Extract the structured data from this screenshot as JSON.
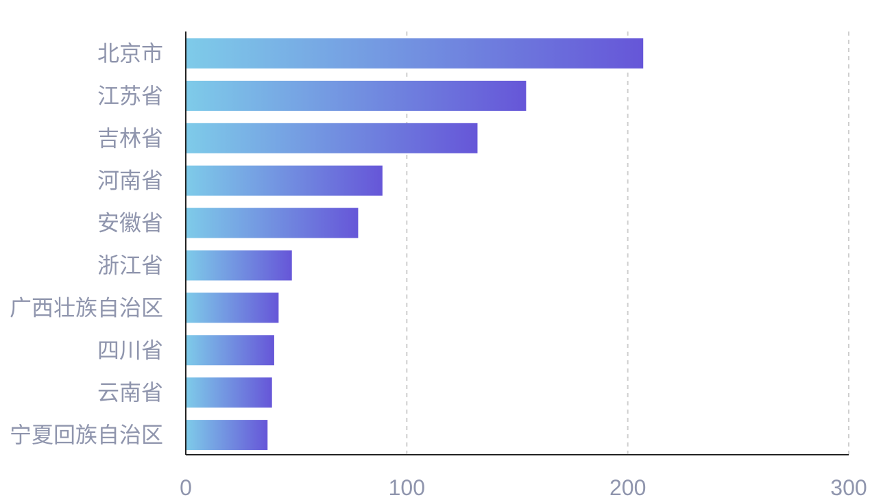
{
  "chart_data": {
    "type": "bar",
    "orientation": "horizontal",
    "categories": [
      "北京市",
      "江苏省",
      "吉林省",
      "河南省",
      "安徽省",
      "浙江省",
      "广西壮族自治区",
      "四川省",
      "云南省",
      "宁夏回族自治区"
    ],
    "values": [
      207,
      154,
      132,
      89,
      78,
      48,
      42,
      40,
      39,
      37
    ],
    "xlim": [
      0,
      300
    ],
    "xticks": [
      0,
      100,
      200,
      300
    ],
    "tick_labels": [
      "0",
      "100",
      "200",
      "300"
    ],
    "grid": "vertical dashed",
    "legend": "none",
    "title": "",
    "xlabel": "",
    "ylabel": ""
  },
  "colors": {
    "bar_gradient_start": "#7ecbe9",
    "bar_gradient_end": "#6656d8",
    "grid": "#cfcfcf",
    "axis": "#222222",
    "label": "#8f95ad"
  }
}
